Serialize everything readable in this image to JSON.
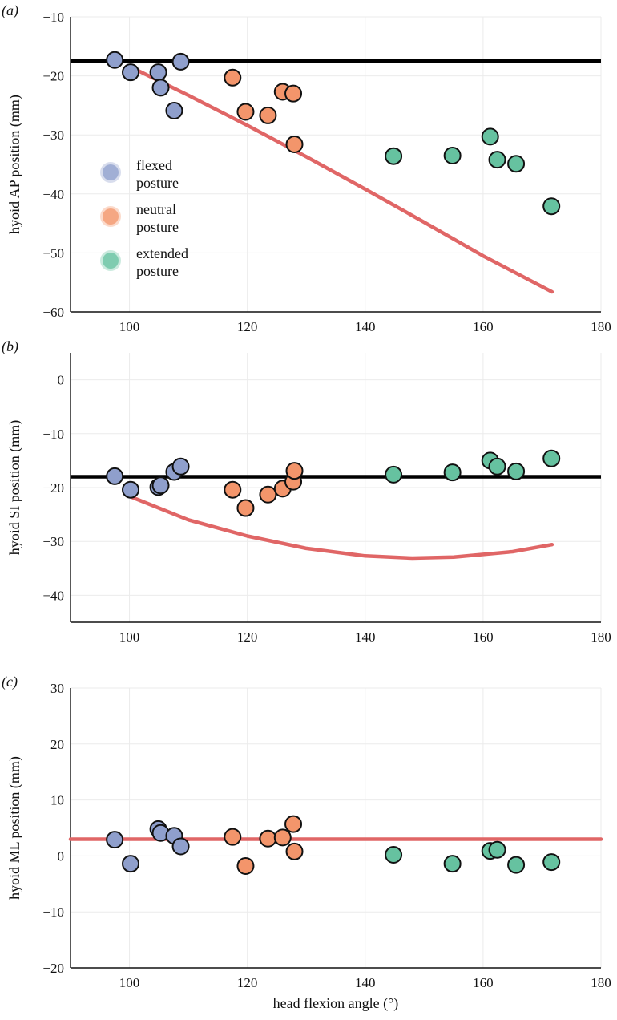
{
  "colors": {
    "flexed": "#8f9fcc",
    "neutral": "#f3956b",
    "extended": "#66c2a0",
    "fit": "#e06666",
    "reference": "#000000",
    "grid": "#ebebeb"
  },
  "legend": [
    {
      "key": "flexed",
      "line1": "flexed",
      "line2": "posture"
    },
    {
      "key": "neutral",
      "line1": "neutral",
      "line2": "posture"
    },
    {
      "key": "extended",
      "line1": "extended",
      "line2": "posture"
    }
  ],
  "xlabel": "head flexion angle (°)",
  "chart_data": [
    {
      "type": "scatter",
      "panel_label": "(a)",
      "ylabel": "hyoid AP position (mm)",
      "xlim": [
        90,
        180
      ],
      "ylim": [
        -60,
        -10
      ],
      "xticks": [
        100,
        120,
        140,
        160,
        180
      ],
      "yticks": [
        -60,
        -50,
        -40,
        -30,
        -20,
        -10
      ],
      "reference_line": -17.5,
      "fit_line": {
        "x": [
          100,
          110,
          120,
          130,
          140,
          150,
          160,
          171.7
        ],
        "y": [
          -18.4,
          -23.3,
          -28.4,
          -33.7,
          -39.2,
          -44.8,
          -50.5,
          -56.6
        ]
      },
      "legend_position": "middle-left",
      "series": [
        {
          "name": "flexed posture",
          "key": "flexed",
          "x": [
            97.5,
            100.2,
            104.9,
            105.3,
            107.6,
            108.7
          ],
          "y": [
            -17.3,
            -19.4,
            -19.4,
            -22.0,
            -25.9,
            -17.6
          ]
        },
        {
          "name": "neutral posture",
          "key": "neutral",
          "x": [
            117.5,
            119.7,
            123.5,
            126.0,
            127.8,
            128.0
          ],
          "y": [
            -20.3,
            -26.1,
            -26.7,
            -22.7,
            -23.0,
            -31.6
          ]
        },
        {
          "name": "extended posture",
          "key": "extended",
          "x": [
            144.8,
            154.8,
            161.2,
            162.4,
            165.6,
            171.6
          ],
          "y": [
            -33.6,
            -33.5,
            -30.3,
            -34.2,
            -34.9,
            -42.1
          ]
        }
      ]
    },
    {
      "type": "scatter",
      "panel_label": "(b)",
      "ylabel": "hyoid SI position (mm)",
      "xlim": [
        90,
        180
      ],
      "ylim": [
        -45,
        5
      ],
      "xticks": [
        100,
        120,
        140,
        160,
        180
      ],
      "yticks": [
        -40,
        -30,
        -20,
        -10,
        0
      ],
      "reference_line": -18.0,
      "fit_line": {
        "x": [
          99.5,
          110,
          120,
          130,
          140,
          148,
          155,
          165,
          171.7
        ],
        "y": [
          -21.4,
          -26.0,
          -29.0,
          -31.3,
          -32.7,
          -33.1,
          -32.9,
          -31.9,
          -30.6
        ]
      },
      "series": [
        {
          "name": "flexed posture",
          "key": "flexed",
          "x": [
            97.5,
            100.2,
            104.9,
            105.3,
            107.6,
            108.7
          ],
          "y": [
            -17.9,
            -20.4,
            -19.9,
            -19.6,
            -17.1,
            -16.1
          ]
        },
        {
          "name": "neutral posture",
          "key": "neutral",
          "x": [
            117.5,
            119.7,
            123.5,
            126.0,
            127.8,
            128.0
          ],
          "y": [
            -20.4,
            -23.8,
            -21.3,
            -20.2,
            -18.9,
            -16.9
          ]
        },
        {
          "name": "extended posture",
          "key": "extended",
          "x": [
            144.8,
            154.8,
            161.2,
            162.4,
            165.6,
            171.6
          ],
          "y": [
            -17.6,
            -17.2,
            -15.0,
            -16.1,
            -17.0,
            -14.6
          ]
        }
      ]
    },
    {
      "type": "scatter",
      "panel_label": "(c)",
      "ylabel": "hyoid ML position (mm)",
      "xlim": [
        90,
        180
      ],
      "ylim": [
        -20,
        30
      ],
      "xticks": [
        100,
        120,
        140,
        160,
        180
      ],
      "yticks": [
        -20,
        -10,
        0,
        10,
        20,
        30
      ],
      "reference_line": null,
      "fit_line": {
        "x": [
          90,
          180
        ],
        "y": [
          3.0,
          3.0
        ]
      },
      "series": [
        {
          "name": "flexed posture",
          "key": "flexed",
          "x": [
            97.5,
            100.2,
            104.9,
            105.3,
            107.6,
            108.7
          ],
          "y": [
            2.9,
            -1.4,
            4.8,
            4.1,
            3.6,
            1.7
          ]
        },
        {
          "name": "neutral posture",
          "key": "neutral",
          "x": [
            117.5,
            119.7,
            123.5,
            126.0,
            127.8,
            128.0
          ],
          "y": [
            3.4,
            -1.8,
            3.1,
            3.3,
            5.7,
            0.8
          ]
        },
        {
          "name": "extended posture",
          "key": "extended",
          "x": [
            144.8,
            154.8,
            161.2,
            162.4,
            165.6,
            171.6
          ],
          "y": [
            0.2,
            -1.4,
            0.9,
            1.1,
            -1.6,
            -1.1
          ]
        }
      ]
    }
  ]
}
